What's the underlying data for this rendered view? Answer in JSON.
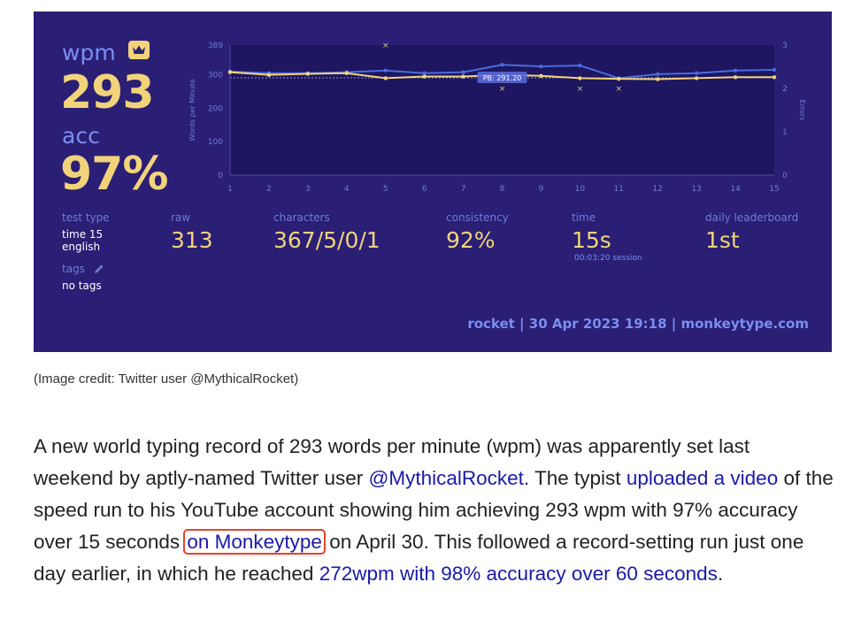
{
  "screenshot": {
    "wpm_label": "wpm",
    "wpm_value": "293",
    "acc_label": "acc",
    "acc_value": "97%",
    "test_type_label": "test type",
    "test_type_value_1": "time 15",
    "test_type_value_2": "english",
    "tags_label": "tags",
    "tags_value": "no tags",
    "raw_label": "raw",
    "raw_value": "313",
    "characters_label": "characters",
    "characters_value": "367/5/0/1",
    "consistency_label": "consistency",
    "consistency_value": "92%",
    "time_label": "time",
    "time_value": "15s",
    "session_value": "00:03:20 session",
    "leaderboard_label": "daily leaderboard",
    "leaderboard_value": "1st",
    "footer": "rocket | 30 Apr 2023 19:18 | monkeytype.com",
    "colors": {
      "background": "#2a1f75",
      "accent": "#f2d37a",
      "sub": "#7b8ef0",
      "raw_line": "#4a6bdc"
    }
  },
  "chart_data": {
    "type": "line",
    "x": [
      1,
      2,
      3,
      4,
      5,
      6,
      7,
      8,
      9,
      10,
      11,
      12,
      13,
      14,
      15
    ],
    "ylabel": "Words per Minute",
    "y2label": "Errors",
    "ylim": [
      0,
      389
    ],
    "y_ticks": [
      0,
      100,
      200,
      300,
      389
    ],
    "y2lim": [
      0,
      3
    ],
    "y2_ticks": [
      0,
      1,
      2,
      3
    ],
    "pb_label": "PB: 291.20",
    "pb_value": 291.2,
    "series": [
      {
        "values": [
          308,
          300,
          303,
          305,
          290,
          295,
          295,
          300,
          297,
          290,
          288,
          287,
          290,
          293,
          293
        ]
      },
      {
        "values": [
          310,
          305,
          305,
          308,
          313,
          305,
          308,
          330,
          325,
          328,
          290,
          302,
          305,
          313,
          315
        ]
      }
    ],
    "errors": [
      {
        "x": 5,
        "value": 3
      },
      {
        "x": 8,
        "value": 2
      },
      {
        "x": 10,
        "value": 2
      },
      {
        "x": 11,
        "value": 2
      }
    ]
  },
  "caption": "(Image credit: Twitter user @MythicalRocket)",
  "article": {
    "t1": "A new world typing record of 293 words per minute (wpm) was apparently set last weekend by aptly-named Twitter user ",
    "l1": "@MythicalRocket",
    "t2": ". The typist ",
    "l2": "uploaded a video",
    "t3": " of the speed run to his YouTube account showing him achieving 293 wpm with 97% accuracy over 15 seconds ",
    "l3": "on Monkeytype",
    "t4": " on April 30. This followed a record-setting run just one day earlier, in which he reached ",
    "l4": "272wpm with 98% accuracy over 60 seconds",
    "t5": "."
  }
}
